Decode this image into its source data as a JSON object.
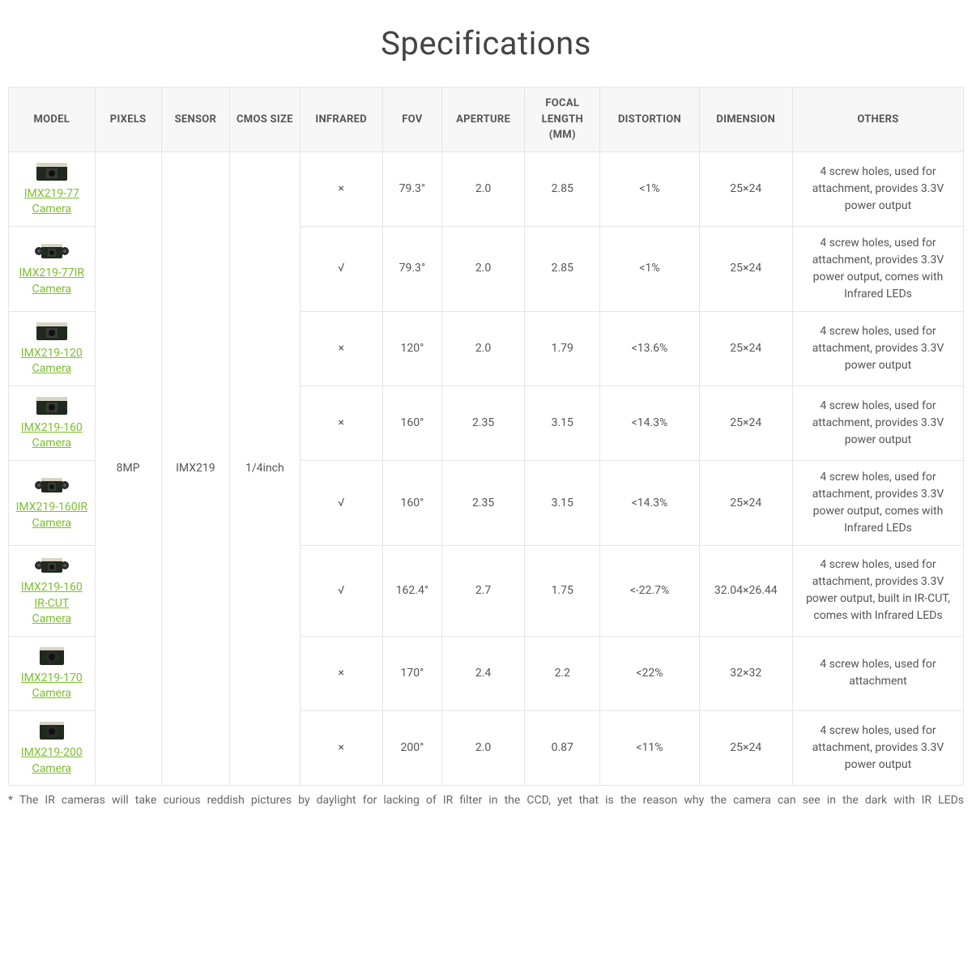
{
  "title": "Specifications",
  "colors": {
    "link": "#7bbf2e",
    "text": "#555555",
    "border": "#e5e5e5",
    "header_bg": "#f7f7f7",
    "page_bg": "#ffffff"
  },
  "columns": [
    "MODEL",
    "PIXELS",
    "SENSOR",
    "CMOS SIZE",
    "INFRARED",
    "FOV",
    "APERTURE",
    "FOCAL LENGTH (MM)",
    "DISTORTION",
    "DIMENSION",
    "OTHERS"
  ],
  "shared": {
    "pixels": "8MP",
    "sensor": "IMX219",
    "cmos": "1/4inch"
  },
  "rows": [
    {
      "model": "IMX219-77 Camera",
      "thumb": "board",
      "infrared": "×",
      "fov": "79.3°",
      "aperture": "2.0",
      "focal": "2.85",
      "distortion": "<1%",
      "dimension": "25×24",
      "others": "4 screw holes, used for attachment, provides 3.3V power output"
    },
    {
      "model": "IMX219-77IR Camera",
      "thumb": "board_ir",
      "infrared": "√",
      "fov": "79.3°",
      "aperture": "2.0",
      "focal": "2.85",
      "distortion": "<1%",
      "dimension": "25×24",
      "others": "4 screw holes, used for attachment, provides 3.3V power output, comes with Infrared LEDs"
    },
    {
      "model": "IMX219-120 Camera",
      "thumb": "board",
      "infrared": "×",
      "fov": "120°",
      "aperture": "2.0",
      "focal": "1.79",
      "distortion": "<13.6%",
      "dimension": "25×24",
      "others": "4 screw holes, used for attachment, provides 3.3V power output"
    },
    {
      "model": "IMX219-160 Camera",
      "thumb": "board",
      "infrared": "×",
      "fov": "160°",
      "aperture": "2.35",
      "focal": "3.15",
      "distortion": "<14.3%",
      "dimension": "25×24",
      "others": "4 screw holes, used for attachment, provides 3.3V power output"
    },
    {
      "model": "IMX219-160IR Camera",
      "thumb": "board_ir",
      "infrared": "√",
      "fov": "160°",
      "aperture": "2.35",
      "focal": "3.15",
      "distortion": "<14.3%",
      "dimension": "25×24",
      "others": "4 screw holes, used for attachment, provides 3.3V power output, comes with Infrared LEDs"
    },
    {
      "model": "IMX219-160 IR-CUT Camera",
      "thumb": "board_ir",
      "infrared": "√",
      "fov": "162.4°",
      "aperture": "2.7",
      "focal": "1.75",
      "distortion": "<-22.7%",
      "dimension": "32.04×26.44",
      "others": "4 screw holes, used for attachment, provides 3.3V power output, built in IR-CUT, comes with Infrared LEDs"
    },
    {
      "model": "IMX219-170 Camera",
      "thumb": "board_round",
      "infrared": "×",
      "fov": "170°",
      "aperture": "2.4",
      "focal": "2.2",
      "distortion": "<22%",
      "dimension": "32×32",
      "others": "4 screw holes, used for attachment"
    },
    {
      "model": "IMX219-200 Camera",
      "thumb": "board_round",
      "infrared": "×",
      "fov": "200°",
      "aperture": "2.0",
      "focal": "0.87",
      "distortion": "<11%",
      "dimension": "25×24",
      "others": "4 screw holes, used for attachment, provides 3.3V power output"
    }
  ],
  "footnote": "* The IR cameras will take curious reddish pictures by daylight for lacking of IR filter in the CCD, yet that is the reason why the camera can see in the dark with IR LEDs"
}
